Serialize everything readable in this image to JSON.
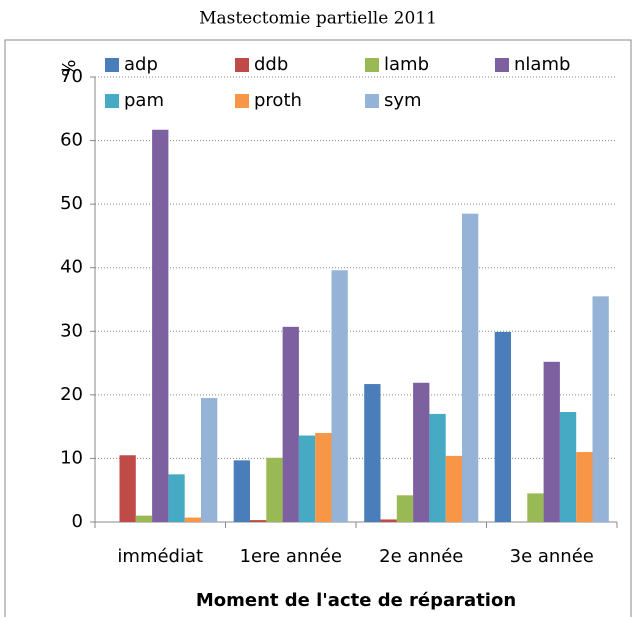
{
  "chart_data": {
    "type": "bar",
    "title": "Mastectomie partielle 2011",
    "xlabel": "Moment de l'acte de réparation",
    "ylabel": "%",
    "categories": [
      "immédiat",
      "1ere année",
      "2e année",
      "3e année"
    ],
    "series": [
      {
        "name": "adp",
        "color": "#4a7ebb",
        "values": [
          0,
          9.7,
          21.7,
          29.9
        ]
      },
      {
        "name": "ddb",
        "color": "#be4b48",
        "values": [
          10.5,
          0.3,
          0.4,
          0
        ]
      },
      {
        "name": "lamb",
        "color": "#98b954",
        "values": [
          1,
          10.1,
          4.2,
          4.5
        ]
      },
      {
        "name": "nlamb",
        "color": "#7d60a0",
        "values": [
          61.7,
          30.7,
          21.9,
          25.2
        ]
      },
      {
        "name": "pam",
        "color": "#46aac5",
        "values": [
          7.5,
          13.6,
          17,
          17.3
        ]
      },
      {
        "name": "proth",
        "color": "#f79646",
        "values": [
          0.7,
          14,
          10.4,
          11
        ]
      },
      {
        "name": "sym",
        "color": "#95b3d7",
        "values": [
          19.5,
          39.6,
          48.5,
          35.5
        ]
      }
    ],
    "ylim": [
      0,
      70
    ],
    "yticks": [
      0,
      10,
      20,
      30,
      40,
      50,
      60,
      70
    ],
    "grid": true
  }
}
